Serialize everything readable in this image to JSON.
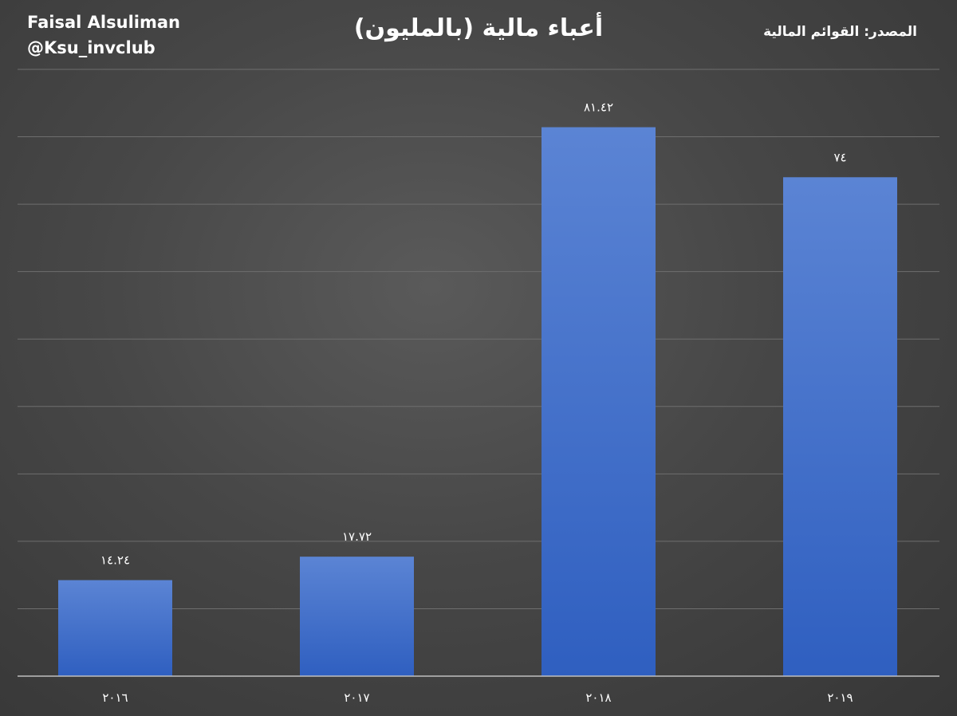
{
  "author": {
    "name": "Faisal Alsuliman",
    "handle": "@Ksu_invclub"
  },
  "source_note": "المصدر: القوائم المالية",
  "chart_data": {
    "type": "bar",
    "title": "أعباء مالية (بالمليون)",
    "categories": [
      "٢٠١٦",
      "٢٠١٧",
      "٢٠١٨",
      "٢٠١٩"
    ],
    "values": [
      14.24,
      17.72,
      81.42,
      74
    ],
    "data_labels": [
      "١٤.٢٤",
      "١٧.٧٢",
      "٨١.٤٢",
      "٧٤"
    ],
    "xlabel": "",
    "ylabel": "",
    "ylim": [
      0,
      90
    ],
    "grid": true,
    "legend": "none",
    "bar_color_top": "#5b84d4",
    "bar_color_bottom": "#2f5fc0"
  }
}
